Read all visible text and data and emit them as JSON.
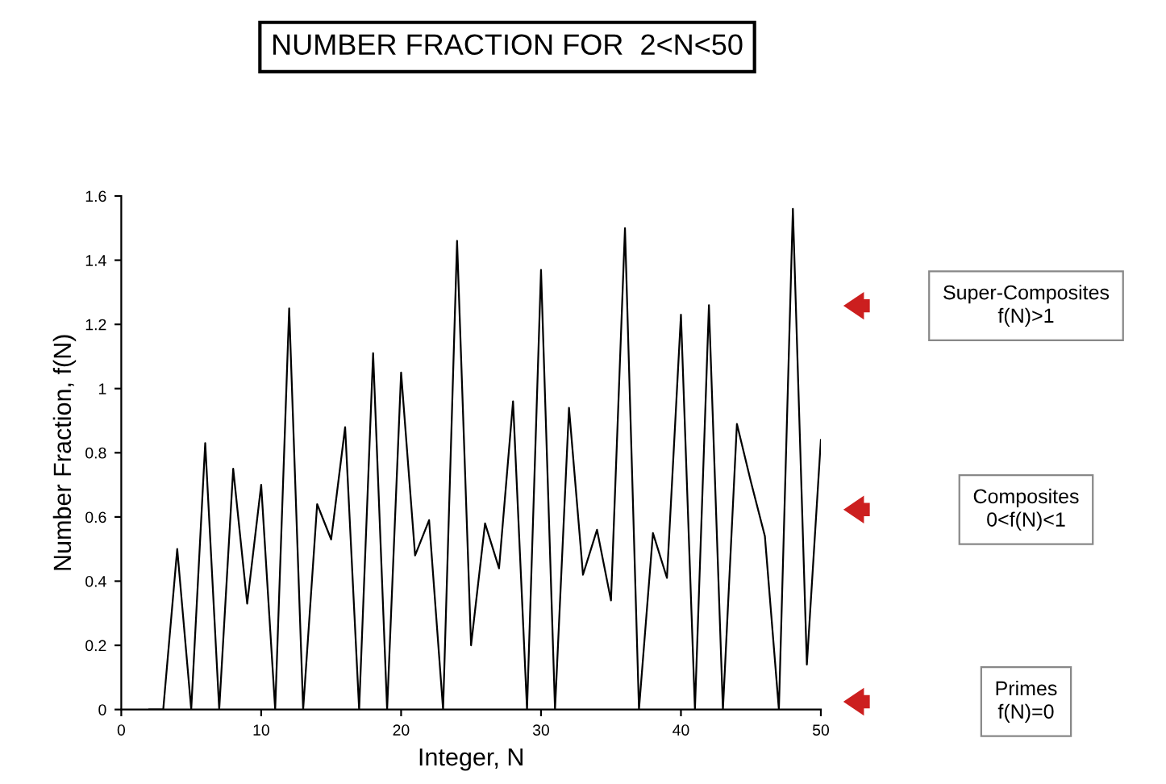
{
  "chart_data": {
    "type": "line",
    "title": "NUMBER FRACTION FOR  2<N<50",
    "xlabel": "Integer, N",
    "ylabel": "Number Fraction, f(N)",
    "x": [
      2,
      3,
      4,
      5,
      6,
      7,
      8,
      9,
      10,
      11,
      12,
      13,
      14,
      15,
      16,
      17,
      18,
      19,
      20,
      21,
      22,
      23,
      24,
      25,
      26,
      27,
      28,
      29,
      30,
      31,
      32,
      33,
      34,
      35,
      36,
      37,
      38,
      39,
      40,
      41,
      42,
      43,
      44,
      45,
      46,
      47,
      48,
      49,
      50
    ],
    "series": [
      {
        "color": "#000000",
        "values": [
          0,
          0,
          0.5,
          0,
          0.83,
          0,
          0.75,
          0.33,
          0.7,
          0,
          1.25,
          0,
          0.64,
          0.53,
          0.88,
          0,
          1.11,
          0,
          1.05,
          0.48,
          0.59,
          0,
          1.46,
          0.2,
          0.58,
          0.44,
          0.96,
          0,
          1.37,
          0,
          0.94,
          0.42,
          0.56,
          0.34,
          1.5,
          0,
          0.55,
          0.41,
          1.23,
          0,
          1.26,
          0,
          0.89,
          0.71,
          0.54,
          0,
          1.56,
          0.14,
          0.84
        ]
      }
    ],
    "xlim": [
      0,
      50
    ],
    "xticks": [
      0,
      10,
      20,
      30,
      40,
      50
    ],
    "ylim": [
      0,
      1.6
    ],
    "yticks": [
      0,
      0.2,
      0.4,
      0.6,
      0.8,
      1,
      1.2,
      1.4,
      1.6
    ],
    "grid": false,
    "legend": false,
    "marker": "none",
    "line_style": "solid",
    "annotations": [
      "Super-Composites\nf(N)>1",
      "Composites\n0<f(N)<1",
      "Primes\nf(N)=0"
    ]
  }
}
